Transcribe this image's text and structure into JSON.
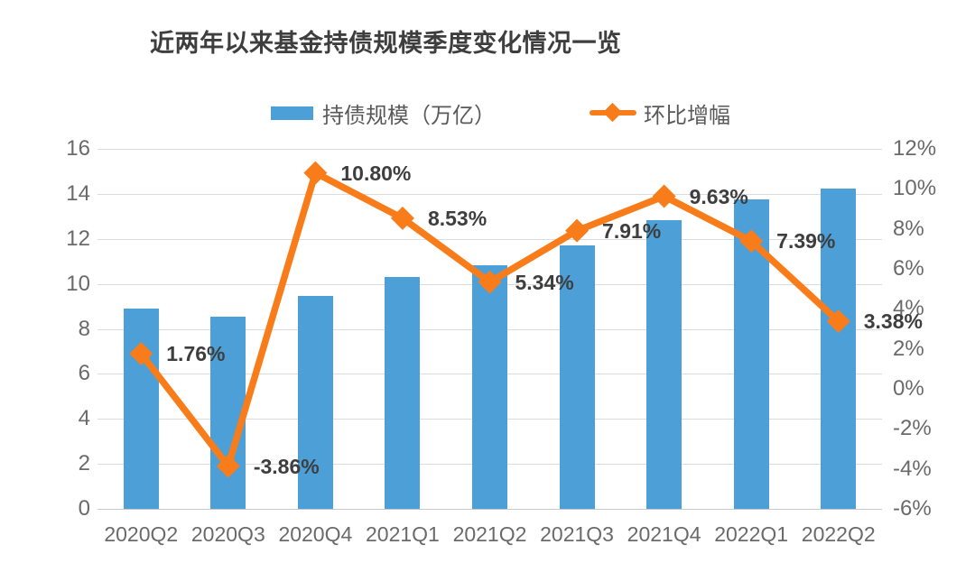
{
  "title": "近两年以来基金持债规模季度变化情况一览",
  "colors": {
    "bar": "#4D9FD8",
    "line": "#F87D1A",
    "title_text": "#3E3E3E",
    "axis_text": "#6A6A6A",
    "data_label_text": "#3E3E3E",
    "legend_text": "#595959",
    "gridline": "#DCDCDC",
    "background": "#FFFFFF"
  },
  "chart_data": {
    "type": "combo",
    "title": "近两年以来基金持债规模季度变化情况一览",
    "categories": [
      "2020Q2",
      "2020Q3",
      "2020Q4",
      "2021Q1",
      "2021Q2",
      "2021Q3",
      "2021Q4",
      "2022Q1",
      "2022Q2"
    ],
    "series": [
      {
        "name": "持债规模（万亿）",
        "type": "bar",
        "axis": "left",
        "values": [
          8.9,
          8.56,
          9.48,
          10.29,
          10.84,
          11.7,
          12.82,
          13.77,
          14.23
        ]
      },
      {
        "name": "环比增幅",
        "type": "line",
        "axis": "right",
        "values": [
          1.76,
          -3.86,
          10.8,
          8.53,
          5.34,
          7.91,
          9.63,
          7.39,
          3.38
        ],
        "point_labels": [
          "1.76%",
          "-3.86%",
          "10.80%",
          "8.53%",
          "5.34%",
          "7.91%",
          "9.63%",
          "7.39%",
          "3.38%"
        ]
      }
    ],
    "left_axis": {
      "min": 0,
      "max": 16,
      "step": 2,
      "tick_labels": [
        "0",
        "2",
        "4",
        "6",
        "8",
        "10",
        "12",
        "14",
        "16"
      ]
    },
    "right_axis": {
      "min": -6,
      "max": 12,
      "step": 2,
      "tick_labels": [
        "-6%",
        "-4%",
        "-2%",
        "0%",
        "2%",
        "4%",
        "6%",
        "8%",
        "10%",
        "12%"
      ]
    },
    "grid": "horizontal",
    "legend_position": "top"
  }
}
